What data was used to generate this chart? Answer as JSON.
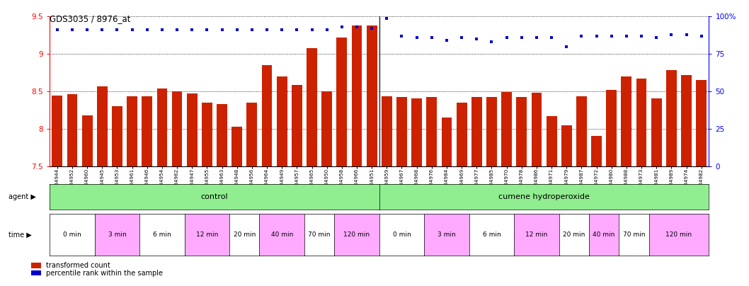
{
  "title": "GDS3035 / 8976_at",
  "bar_color": "#cc2200",
  "dot_color": "#0000cc",
  "ylim_left": [
    7.5,
    9.5
  ],
  "ylim_right": [
    0,
    100
  ],
  "yticks_left": [
    7.5,
    8.0,
    8.5,
    9.0,
    9.5
  ],
  "ytick_labels_left": [
    "7.5",
    "8",
    "8.5",
    "9",
    "9.5"
  ],
  "yticks_right": [
    0,
    25,
    50,
    75,
    100
  ],
  "ytick_labels_right": [
    "0",
    "25",
    "50",
    "75",
    "100%"
  ],
  "agent_color": "#90ee90",
  "agent_label_control": "control",
  "agent_label_cumene": "cumene hydroperoxide",
  "time_labels": [
    "0 min",
    "3 min",
    "6 min",
    "12 min",
    "20 min",
    "40 min",
    "70 min",
    "120 min"
  ],
  "time_colors": [
    "#ffffff",
    "#ffaaff",
    "#ffffff",
    "#ffaaff",
    "#ffffff",
    "#ffaaff",
    "#ffffff",
    "#ffaaff"
  ],
  "control_time_counts": [
    3,
    3,
    3,
    3,
    2,
    3,
    2,
    3
  ],
  "cumene_time_counts": [
    3,
    3,
    3,
    3,
    2,
    2,
    2,
    4
  ],
  "n_control": 22,
  "n_cumene": 22,
  "bar_values": [
    8.44,
    8.46,
    8.18,
    8.57,
    8.3,
    8.43,
    8.43,
    8.54,
    8.5,
    8.47,
    8.35,
    8.33,
    8.03,
    8.35,
    8.85,
    8.7,
    8.59,
    9.08,
    8.5,
    9.22,
    9.38,
    9.38,
    8.43,
    8.42,
    8.41,
    8.42,
    8.15,
    8.35,
    8.42,
    8.42,
    8.49,
    8.42,
    8.48,
    8.17,
    8.05,
    8.43,
    7.9,
    8.52,
    8.7,
    8.67,
    8.41,
    8.78,
    8.72,
    8.65
  ],
  "percentile_values": [
    91,
    91,
    91,
    91,
    91,
    91,
    91,
    91,
    91,
    91,
    91,
    91,
    91,
    91,
    91,
    91,
    91,
    91,
    91,
    93,
    93,
    92,
    99,
    87,
    86,
    86,
    84,
    86,
    85,
    83,
    86,
    86,
    86,
    86,
    80,
    87,
    87,
    87,
    87,
    87,
    86,
    88,
    88,
    87
  ],
  "sample_ids": [
    "GSM184944",
    "GSM184952",
    "GSM184960",
    "GSM184945",
    "GSM184953",
    "GSM184961",
    "GSM184946",
    "GSM184954",
    "GSM184962",
    "GSM184947",
    "GSM184955",
    "GSM184963",
    "GSM184948",
    "GSM184956",
    "GSM184964",
    "GSM184949",
    "GSM184957",
    "GSM184965",
    "GSM184950",
    "GSM184958",
    "GSM184966",
    "GSM184951",
    "GSM184959",
    "GSM184967",
    "GSM184968",
    "GSM184976",
    "GSM184984",
    "GSM184969",
    "GSM184977",
    "GSM184985",
    "GSM184970",
    "GSM184978",
    "GSM184986",
    "GSM184971",
    "GSM184979",
    "GSM184987",
    "GSM184972",
    "GSM184980",
    "GSM184988",
    "GSM184973",
    "GSM184981",
    "GSM184989",
    "GSM184974",
    "GSM184982"
  ],
  "legend_bar_label": "transformed count",
  "legend_dot_label": "percentile rank within the sample",
  "agent_row_label": "agent",
  "time_row_label": "time"
}
